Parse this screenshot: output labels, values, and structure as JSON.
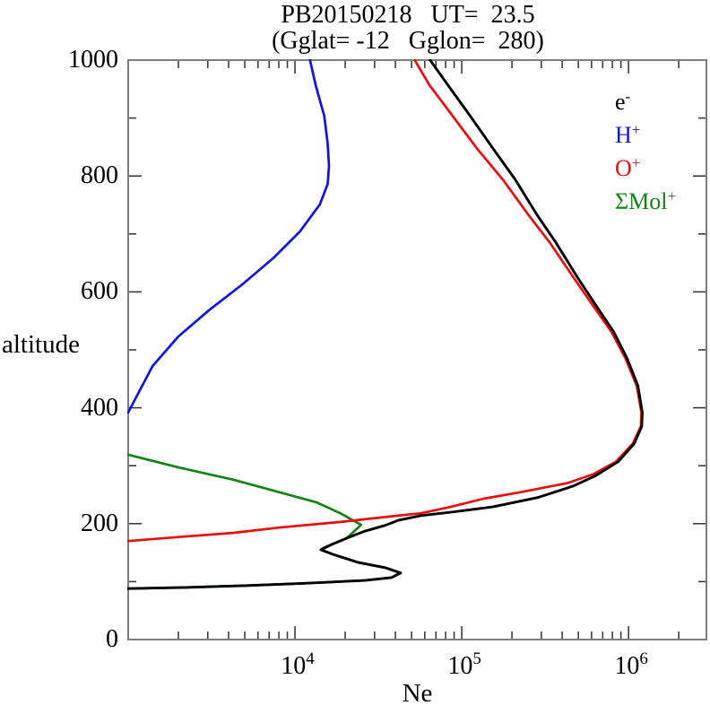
{
  "chart_data": {
    "type": "line",
    "title": "PB20150218   UT=  23.5",
    "subtitle": "(Gglat= -12   Gglon=  280)",
    "xlabel": "Ne",
    "ylabel": "altitude",
    "frame_color": "#7d7d7d",
    "tick_color": "#3c3c3c",
    "x_axis": {
      "scale": "log",
      "min": 1000,
      "max": 2930000,
      "major_tick_labels": [
        {
          "value": 10000,
          "base": "10",
          "exp": "4"
        },
        {
          "value": 100000,
          "base": "10",
          "exp": "5"
        },
        {
          "value": 1000000,
          "base": "10",
          "exp": "6"
        }
      ]
    },
    "y_axis": {
      "scale": "linear",
      "min": 0,
      "max": 1000,
      "major_step": 200,
      "minor_step": 100,
      "major_tick_labels": [
        {
          "value": 1000,
          "label": "1000"
        },
        {
          "value": 800,
          "label": "800"
        },
        {
          "value": 600,
          "label": "600"
        },
        {
          "value": 400,
          "label": "400"
        },
        {
          "value": 200,
          "label": "200"
        },
        {
          "value": 0,
          "label": "0"
        }
      ]
    },
    "legend": {
      "position": "upper-right-inside",
      "entries": [
        {
          "id": "e",
          "base": "e",
          "sup": "-",
          "color": "#000000"
        },
        {
          "id": "h",
          "base": "H",
          "sup": "+",
          "color": "#1212df"
        },
        {
          "id": "o",
          "base": "O",
          "sup": "+",
          "color": "#ea0d0d"
        },
        {
          "id": "mol",
          "base": "ΣMol",
          "sup": "+",
          "color": "#128217"
        }
      ]
    },
    "series": [
      {
        "name": "H+",
        "color": "#1212df",
        "width": 2.7,
        "points": [
          [
            1000,
            392
          ],
          [
            1400,
            472
          ],
          [
            2000,
            523
          ],
          [
            3100,
            570
          ],
          [
            4800,
            612
          ],
          [
            7400,
            658
          ],
          [
            10700,
            704
          ],
          [
            14100,
            751
          ],
          [
            15700,
            786
          ],
          [
            16000,
            817
          ],
          [
            15700,
            856
          ],
          [
            15000,
            903
          ],
          [
            13300,
            957
          ],
          [
            12300,
            1000
          ]
        ]
      },
      {
        "name": "SMol+",
        "color": "#128217",
        "width": 2.7,
        "points": [
          [
            1000,
            319
          ],
          [
            2000,
            297
          ],
          [
            4250,
            276
          ],
          [
            7900,
            255
          ],
          [
            13400,
            237
          ],
          [
            18700,
            218
          ],
          [
            24900,
            198
          ],
          [
            20400,
            175
          ],
          [
            15000,
            159
          ],
          [
            14300,
            155
          ],
          [
            16900,
            147
          ],
          [
            24000,
            133
          ],
          [
            34800,
            124
          ],
          [
            43000,
            115
          ],
          [
            37900,
            107
          ],
          [
            26200,
            102
          ],
          [
            11400,
            97
          ],
          [
            5000,
            93
          ],
          [
            2200,
            90
          ],
          [
            1000,
            88
          ]
        ]
      },
      {
        "name": "O+",
        "color": "#ea0d0d",
        "width": 2.7,
        "points": [
          [
            1000,
            170
          ],
          [
            2000,
            177
          ],
          [
            4250,
            184
          ],
          [
            7900,
            193
          ],
          [
            18700,
            203
          ],
          [
            39000,
            213
          ],
          [
            57000,
            218
          ],
          [
            83000,
            228
          ],
          [
            135000,
            243
          ],
          [
            222000,
            254
          ],
          [
            430000,
            270
          ],
          [
            610000,
            285
          ],
          [
            840000,
            307
          ],
          [
            1060000,
            338
          ],
          [
            1185000,
            368
          ],
          [
            1195000,
            392
          ],
          [
            1120000,
            438
          ],
          [
            960000,
            485
          ],
          [
            790000,
            531
          ],
          [
            610000,
            577
          ],
          [
            470000,
            624
          ],
          [
            335000,
            686
          ],
          [
            252000,
            732
          ],
          [
            176000,
            794
          ],
          [
            123000,
            848
          ],
          [
            88500,
            903
          ],
          [
            64000,
            957
          ],
          [
            52200,
            1000
          ]
        ]
      },
      {
        "name": "e-",
        "color": "#000000",
        "width": 2.9,
        "points": [
          [
            1000,
            88
          ],
          [
            2200,
            90
          ],
          [
            5000,
            93
          ],
          [
            11400,
            97
          ],
          [
            26200,
            102
          ],
          [
            37900,
            107
          ],
          [
            43000,
            115
          ],
          [
            34800,
            124
          ],
          [
            24000,
            133
          ],
          [
            16900,
            147
          ],
          [
            14300,
            155
          ],
          [
            16600,
            164
          ],
          [
            20400,
            175
          ],
          [
            26200,
            187
          ],
          [
            34800,
            197
          ],
          [
            41900,
            206
          ],
          [
            57000,
            214
          ],
          [
            93500,
            221
          ],
          [
            153500,
            229
          ],
          [
            285000,
            245
          ],
          [
            467000,
            265
          ],
          [
            637000,
            283
          ],
          [
            867000,
            307
          ],
          [
            1080000,
            338
          ],
          [
            1200000,
            368
          ],
          [
            1210000,
            392
          ],
          [
            1138000,
            438
          ],
          [
            981000,
            485
          ],
          [
            815000,
            531
          ],
          [
            637000,
            577
          ],
          [
            497000,
            624
          ],
          [
            365000,
            686
          ],
          [
            284000,
            732
          ],
          [
            209000,
            794
          ],
          [
            153500,
            848
          ],
          [
            112700,
            903
          ],
          [
            82600,
            957
          ],
          [
            64600,
            1000
          ]
        ]
      }
    ]
  }
}
